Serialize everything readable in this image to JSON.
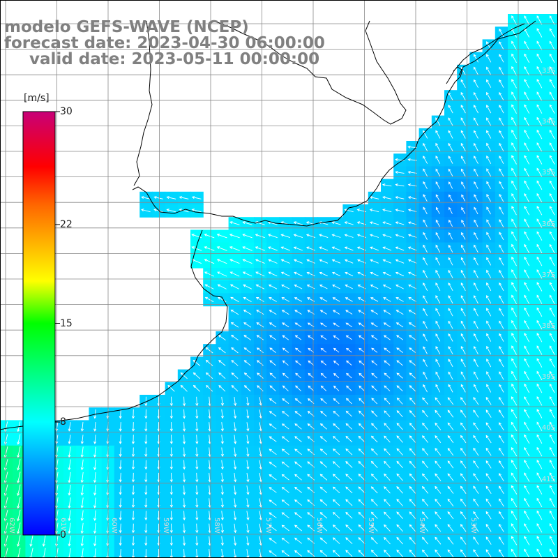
{
  "title": {
    "line1": "modelo GEFS-WAVE (NCEP)",
    "line2": "forecast date: 2023-04-30 06:00:00",
    "line3": "valid date: 2023-05-11 00:00:00"
  },
  "colorbar": {
    "unit": "[m/s]",
    "ticks": [
      "30",
      "22",
      "15",
      "8",
      "0"
    ],
    "tick_values": [
      30,
      22,
      15,
      8,
      0
    ],
    "range": [
      0,
      30
    ]
  },
  "lat_labels": [
    "33S",
    "34S",
    "35S",
    "36S",
    "37S",
    "38S",
    "39S",
    "40S",
    "41S"
  ],
  "lon_labels": [
    "62W",
    "61W",
    "60W",
    "59W",
    "58W",
    "57W",
    "56W",
    "55W",
    "54W",
    "53W"
  ],
  "colors": {
    "land": "#ffffff",
    "grid": "#888888",
    "coast": "#000000",
    "arrow": "#ffffff"
  }
}
